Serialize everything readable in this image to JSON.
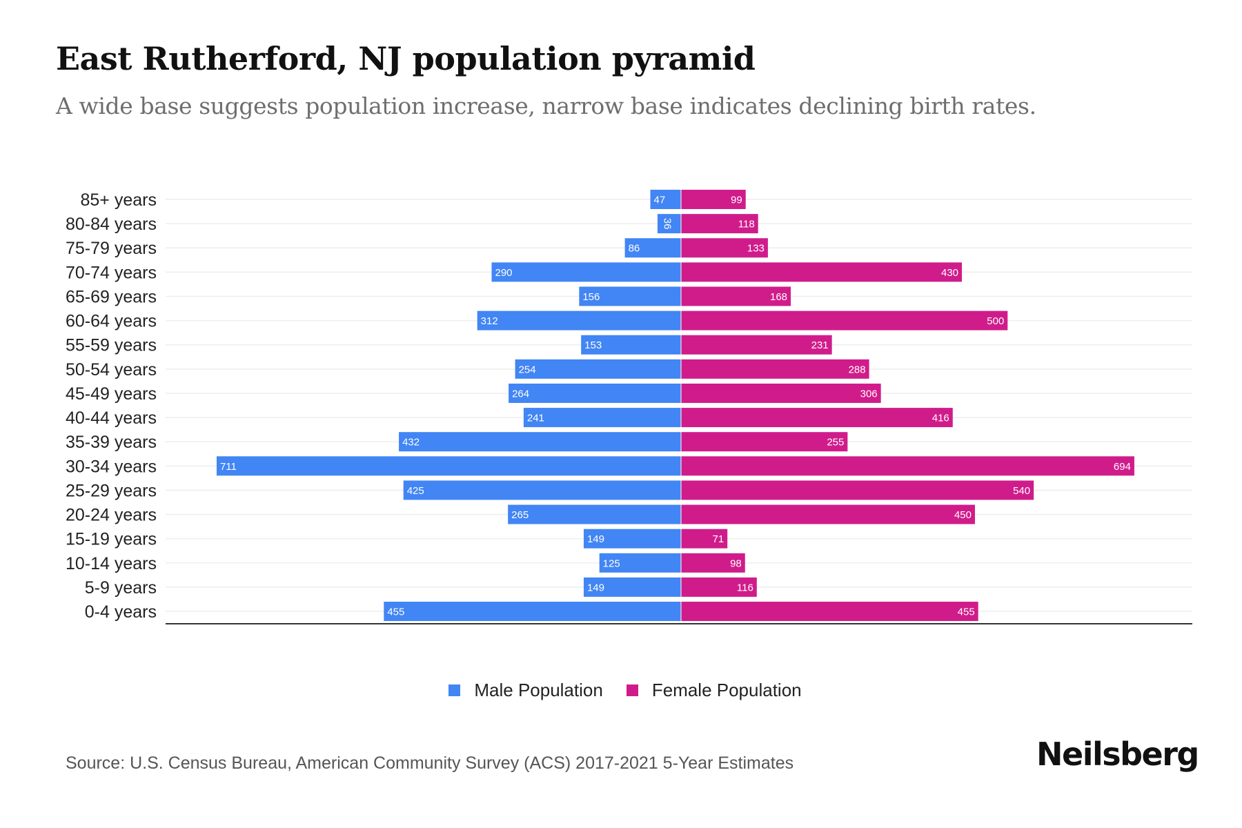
{
  "header": {
    "title": "East Rutherford, NJ population pyramid",
    "subtitle": "A wide base suggests population increase, narrow base indicates declining birth rates."
  },
  "footer": {
    "source": "Source: U.S. Census Bureau, American Community Survey (ACS) 2017-2021 5-Year Estimates",
    "logo": "Neilsberg"
  },
  "colors": {
    "male": "#4285F4",
    "female": "#D01C8B",
    "grid": "#EEEEEE",
    "axis": "#333333"
  },
  "chart_data": {
    "type": "bar",
    "orientation": "horizontal-diverging",
    "title": "East Rutherford, NJ population pyramid",
    "subtitle": "A wide base suggests population increase, narrow base indicates declining birth rates.",
    "xlabel": "",
    "ylabel": "",
    "grid": true,
    "legend_position": "bottom-center",
    "xlim": [
      -780,
      780
    ],
    "categories": [
      "85+ years",
      "80-84 years",
      "75-79 years",
      "70-74 years",
      "65-69 years",
      "60-64 years",
      "55-59 years",
      "50-54 years",
      "45-49 years",
      "40-44 years",
      "35-39 years",
      "30-34 years",
      "25-29 years",
      "20-24 years",
      "15-19 years",
      "10-14 years",
      "5-9 years",
      "0-4 years"
    ],
    "series": [
      {
        "name": "Male Population",
        "side": "left",
        "values": [
          47,
          36,
          86,
          290,
          156,
          312,
          153,
          254,
          264,
          241,
          432,
          711,
          425,
          265,
          149,
          125,
          149,
          455
        ]
      },
      {
        "name": "Female Population",
        "side": "right",
        "values": [
          99,
          118,
          133,
          430,
          168,
          500,
          231,
          288,
          306,
          416,
          255,
          694,
          540,
          450,
          71,
          98,
          116,
          455
        ]
      }
    ]
  }
}
